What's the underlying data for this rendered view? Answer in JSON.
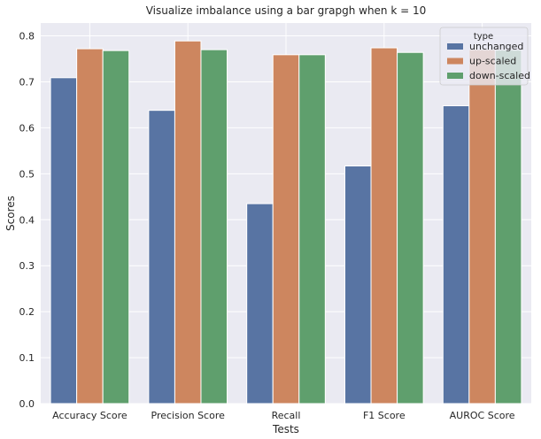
{
  "chart_data": {
    "type": "bar",
    "title": "Visualize imbalance using a bar grapgh when k = 10",
    "xlabel": "Tests",
    "ylabel": "Scores",
    "categories": [
      "Accuracy Score",
      "Precision Score",
      "Recall",
      "F1 Score",
      "AUROC Score"
    ],
    "series": [
      {
        "name": "unchanged",
        "color": "#5874a3",
        "values": [
          0.709,
          0.638,
          0.435,
          0.517,
          0.648
        ]
      },
      {
        "name": "up-scaled",
        "color": "#cd865f",
        "values": [
          0.772,
          0.789,
          0.759,
          0.774,
          0.77
        ]
      },
      {
        "name": "down-scaled",
        "color": "#5f9f6d",
        "values": [
          0.768,
          0.77,
          0.759,
          0.764,
          0.769
        ]
      }
    ],
    "yticks": [
      0.0,
      0.1,
      0.2,
      0.3,
      0.4,
      0.5,
      0.6,
      0.7,
      0.8
    ],
    "ytick_labels": [
      "0.0",
      "0.1",
      "0.2",
      "0.3",
      "0.4",
      "0.5",
      "0.6",
      "0.7",
      "0.8"
    ],
    "ylim": [
      0,
      0.828
    ],
    "grid": true,
    "legend": {
      "title": "type",
      "placement": "top-right"
    },
    "background_color": "#eaeaf2"
  }
}
